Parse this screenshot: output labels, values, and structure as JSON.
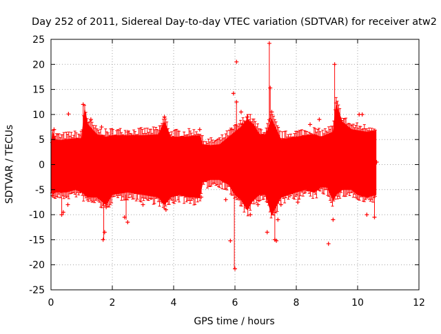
{
  "chart_data": {
    "type": "scatter",
    "title": "Day 252 of 2011, Sidereal Day-to-day VTEC variation (SDTVAR) for receiver atw2",
    "xlabel": "GPS time / hours",
    "ylabel": "SDTVAR / TECUs",
    "xlim": [
      0,
      12
    ],
    "ylim": [
      -25,
      25
    ],
    "x_ticks": [
      0,
      2,
      4,
      6,
      8,
      10,
      12
    ],
    "y_ticks": [
      -25,
      -20,
      -15,
      -10,
      -5,
      0,
      5,
      10,
      15,
      20,
      25
    ],
    "grid": true,
    "series_color": "#ff0000",
    "band": {
      "x": [
        0.0,
        0.05,
        0.15,
        0.3,
        0.5,
        0.8,
        1.0,
        1.1,
        1.2,
        1.5,
        1.8,
        2.0,
        2.5,
        3.0,
        3.5,
        3.7,
        3.9,
        4.2,
        4.5,
        4.85,
        4.95,
        5.2,
        5.5,
        5.8,
        6.0,
        6.2,
        6.4,
        6.6,
        6.8,
        7.0,
        7.2,
        7.5,
        8.0,
        8.3,
        8.6,
        8.8,
        9.0,
        9.2,
        9.3,
        9.5,
        9.8,
        10.0,
        10.3,
        10.6
      ],
      "upper": [
        3.0,
        6.5,
        5.0,
        4.8,
        5.0,
        5.2,
        5.2,
        11.0,
        8.0,
        6.0,
        5.5,
        5.8,
        5.8,
        5.8,
        6.0,
        8.5,
        5.5,
        5.5,
        5.6,
        5.8,
        4.0,
        3.8,
        4.0,
        5.5,
        6.5,
        7.5,
        9.0,
        8.0,
        6.0,
        6.0,
        9.0,
        5.0,
        5.5,
        5.8,
        6.0,
        5.5,
        6.0,
        6.5,
        12.0,
        8.5,
        7.0,
        6.8,
        6.5,
        6.7
      ],
      "lower": [
        -3.0,
        -6.0,
        -5.5,
        -5.5,
        -5.5,
        -5.0,
        -5.5,
        -6.0,
        -6.5,
        -6.5,
        -8.0,
        -6.0,
        -5.5,
        -6.0,
        -6.5,
        -8.0,
        -6.5,
        -6.0,
        -6.5,
        -6.5,
        -3.5,
        -3.0,
        -3.0,
        -4.0,
        -6.0,
        -7.0,
        -9.0,
        -7.0,
        -6.0,
        -6.0,
        -10.0,
        -6.5,
        -5.5,
        -5.0,
        -5.5,
        -4.5,
        -4.5,
        -7.0,
        -6.0,
        -5.0,
        -5.0,
        -6.0,
        -6.5,
        -6.0
      ]
    },
    "outliers": [
      {
        "x": 0.05,
        "y": -6.2
      },
      {
        "x": 0.1,
        "y": 7.0
      },
      {
        "x": 0.35,
        "y": -10.0
      },
      {
        "x": 0.4,
        "y": -9.5
      },
      {
        "x": 0.55,
        "y": -8.0
      },
      {
        "x": 0.57,
        "y": 10.1
      },
      {
        "x": 1.05,
        "y": 12.0
      },
      {
        "x": 1.3,
        "y": 9.0
      },
      {
        "x": 1.7,
        "y": -15.0
      },
      {
        "x": 1.75,
        "y": -13.5
      },
      {
        "x": 1.8,
        "y": -8.5
      },
      {
        "x": 1.65,
        "y": 7.5
      },
      {
        "x": 2.4,
        "y": -10.5
      },
      {
        "x": 2.5,
        "y": -11.5
      },
      {
        "x": 2.5,
        "y": 6.5
      },
      {
        "x": 3.0,
        "y": -8.0
      },
      {
        "x": 3.7,
        "y": 9.5
      },
      {
        "x": 3.75,
        "y": -9.0
      },
      {
        "x": 4.85,
        "y": 7.0
      },
      {
        "x": 4.9,
        "y": -6.5
      },
      {
        "x": 5.7,
        "y": -7.0
      },
      {
        "x": 5.85,
        "y": -15.2
      },
      {
        "x": 5.9,
        "y": 7.0
      },
      {
        "x": 5.95,
        "y": 14.2
      },
      {
        "x": 6.0,
        "y": -20.8
      },
      {
        "x": 6.05,
        "y": 20.5
      },
      {
        "x": 6.05,
        "y": 12.5
      },
      {
        "x": 6.2,
        "y": 10.5
      },
      {
        "x": 6.25,
        "y": 8.0
      },
      {
        "x": 6.4,
        "y": 9.5
      },
      {
        "x": 6.5,
        "y": -10.0
      },
      {
        "x": 6.75,
        "y": -8.0
      },
      {
        "x": 7.05,
        "y": -13.5
      },
      {
        "x": 7.12,
        "y": 24.2
      },
      {
        "x": 7.15,
        "y": 15.3
      },
      {
        "x": 7.2,
        "y": 10.5
      },
      {
        "x": 7.3,
        "y": -15.0
      },
      {
        "x": 7.35,
        "y": -15.2
      },
      {
        "x": 7.4,
        "y": -11.0
      },
      {
        "x": 7.5,
        "y": -8.0
      },
      {
        "x": 8.05,
        "y": -7.5
      },
      {
        "x": 8.45,
        "y": 8.0
      },
      {
        "x": 8.75,
        "y": 9.0
      },
      {
        "x": 9.05,
        "y": -15.8
      },
      {
        "x": 9.2,
        "y": -11.0
      },
      {
        "x": 9.25,
        "y": 20.0
      },
      {
        "x": 9.3,
        "y": 12.3
      },
      {
        "x": 10.05,
        "y": 10.0
      },
      {
        "x": 10.15,
        "y": 10.0
      },
      {
        "x": 10.3,
        "y": -10.0
      },
      {
        "x": 10.55,
        "y": -10.5
      },
      {
        "x": 10.62,
        "y": 0.5
      }
    ],
    "stems": [
      {
        "x": 1.05,
        "y1": 5.0,
        "y2": 12.0
      },
      {
        "x": 1.72,
        "y1": -5.0,
        "y2": -15.0
      },
      {
        "x": 5.98,
        "y1": -5.0,
        "y2": -20.8
      },
      {
        "x": 6.05,
        "y1": 5.0,
        "y2": 12.5
      },
      {
        "x": 7.12,
        "y1": 8.5,
        "y2": 24.2
      },
      {
        "x": 7.15,
        "y1": 5.0,
        "y2": 15.3
      },
      {
        "x": 7.3,
        "y1": -9.0,
        "y2": -15.2
      },
      {
        "x": 9.3,
        "y1": 6.0,
        "y2": 12.3
      },
      {
        "x": 9.25,
        "y1": 6.0,
        "y2": 20.0
      },
      {
        "x": 0.35,
        "y1": -5.0,
        "y2": -10.0
      },
      {
        "x": 10.55,
        "y1": -5.0,
        "y2": -10.5
      },
      {
        "x": 2.45,
        "y1": -6.0,
        "y2": -11.0
      }
    ]
  }
}
